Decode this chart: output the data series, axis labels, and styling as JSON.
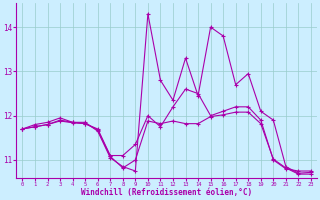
{
  "xlabel": "Windchill (Refroidissement éolien,°C)",
  "background_color": "#cceeff",
  "line_color": "#aa00aa",
  "grid_color": "#99cccc",
  "x_ticks": [
    0,
    1,
    2,
    3,
    4,
    5,
    6,
    7,
    8,
    9,
    10,
    11,
    12,
    13,
    14,
    15,
    16,
    17,
    18,
    19,
    20,
    21,
    22,
    23
  ],
  "ylim": [
    10.6,
    14.55
  ],
  "yticks": [
    11,
    12,
    13,
    14
  ],
  "series": [
    [
      11.7,
      11.8,
      11.85,
      11.95,
      11.85,
      11.85,
      11.65,
      11.05,
      10.85,
      10.75,
      14.3,
      12.8,
      12.35,
      13.3,
      12.45,
      14.0,
      13.8,
      12.7,
      12.95,
      12.1,
      11.9,
      10.85,
      10.7,
      10.72
    ],
    [
      11.7,
      11.75,
      11.8,
      11.9,
      11.85,
      11.82,
      11.7,
      11.1,
      11.1,
      11.35,
      12.0,
      11.75,
      12.2,
      12.6,
      12.5,
      12.0,
      12.1,
      12.2,
      12.2,
      11.9,
      11.0,
      10.8,
      10.75,
      10.75
    ],
    [
      11.7,
      11.75,
      11.8,
      11.88,
      11.84,
      11.82,
      11.68,
      11.08,
      10.82,
      11.0,
      11.88,
      11.82,
      11.88,
      11.82,
      11.82,
      11.98,
      12.02,
      12.08,
      12.08,
      11.82,
      11.02,
      10.82,
      10.68,
      10.68
    ]
  ]
}
